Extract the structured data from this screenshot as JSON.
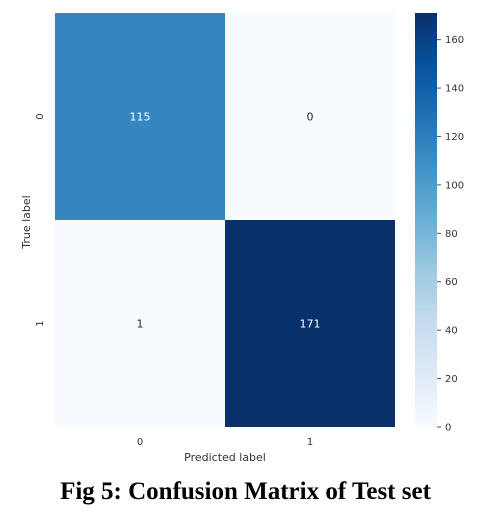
{
  "chart_data": {
    "type": "heatmap",
    "title": "",
    "xlabel": "Predicted label",
    "ylabel": "True label",
    "x_categories": [
      "0",
      "1"
    ],
    "y_categories": [
      "0",
      "1"
    ],
    "values": [
      [
        115,
        0
      ],
      [
        1,
        171
      ]
    ],
    "cell_labels": [
      [
        "115",
        "0"
      ],
      [
        "1",
        "171"
      ]
    ],
    "colorbar": {
      "min": 0,
      "max": 171,
      "ticks": [
        0,
        20,
        40,
        60,
        80,
        100,
        120,
        140,
        160
      ],
      "tick_labels": [
        "0",
        "20",
        "40",
        "60",
        "80",
        "100",
        "120",
        "140",
        "160"
      ]
    },
    "colormap": "Blues",
    "colors": {
      "low": "#f7fbff",
      "high": "#08306b"
    },
    "grid": false,
    "legend": "right"
  },
  "caption": "Fig 5: Confusion Matrix of Test set"
}
